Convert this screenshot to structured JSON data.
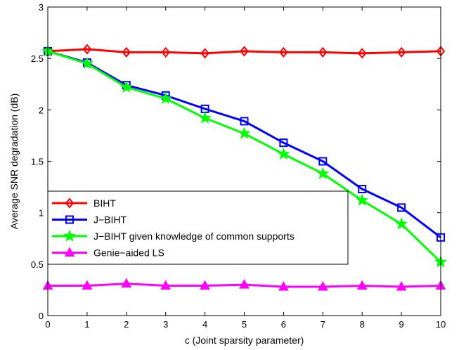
{
  "chart_data": {
    "type": "line",
    "title": "",
    "xlabel": "c (Joint sparsity parameter)",
    "ylabel": "Average SNR degradation (dB)",
    "xlim": [
      0,
      10
    ],
    "ylim": [
      0,
      3
    ],
    "x": [
      0,
      1,
      2,
      3,
      4,
      5,
      6,
      7,
      8,
      9,
      10
    ],
    "x_ticks": [
      "0",
      "1",
      "2",
      "3",
      "4",
      "5",
      "6",
      "7",
      "8",
      "9",
      "10"
    ],
    "y_ticks": [
      "0",
      "0.5",
      "1",
      "1.5",
      "2",
      "2.5",
      "3"
    ],
    "grid": false,
    "legend_position": "center-left",
    "series": [
      {
        "name": "BIHT",
        "color": "#ff0000",
        "marker": "diamond",
        "values": [
          2.57,
          2.59,
          2.56,
          2.56,
          2.55,
          2.57,
          2.56,
          2.56,
          2.55,
          2.56,
          2.57
        ]
      },
      {
        "name": "J−BIHT",
        "color": "#0000ff",
        "marker": "square",
        "values": [
          2.57,
          2.46,
          2.24,
          2.14,
          2.01,
          1.89,
          1.68,
          1.5,
          1.23,
          1.05,
          0.76
        ]
      },
      {
        "name": "J−BIHT given knowledge of common supports",
        "color": "#00ff00",
        "marker": "star",
        "values": [
          2.57,
          2.45,
          2.22,
          2.11,
          1.92,
          1.77,
          1.57,
          1.38,
          1.12,
          0.89,
          0.52
        ]
      },
      {
        "name": "Genie−aided LS",
        "color": "#ff00ff",
        "marker": "triangle",
        "values": [
          0.29,
          0.29,
          0.31,
          0.29,
          0.29,
          0.3,
          0.28,
          0.28,
          0.29,
          0.28,
          0.29
        ]
      }
    ]
  }
}
